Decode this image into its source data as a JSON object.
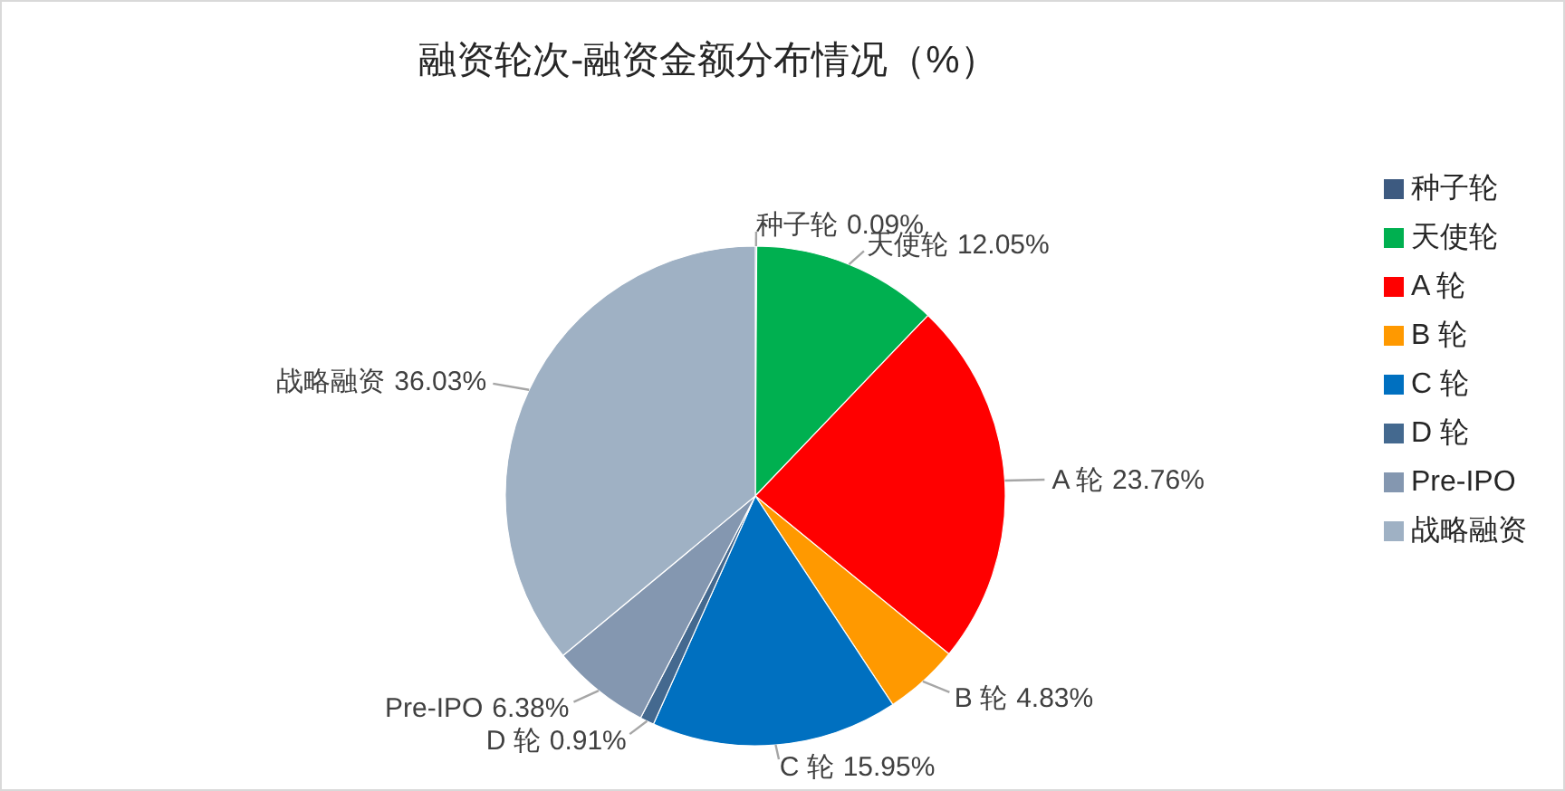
{
  "chart_data": {
    "type": "pie",
    "title": "融资轮次-融资金额分布情况（%）",
    "categories": [
      "种子轮",
      "天使轮",
      "A 轮",
      "B 轮",
      "C 轮",
      "D 轮",
      "Pre-IPO",
      "战略融资"
    ],
    "values": [
      0.09,
      12.05,
      23.76,
      4.83,
      15.95,
      0.91,
      6.38,
      36.03
    ],
    "value_labels": [
      "0.09%",
      "12.05%",
      "23.76%",
      "4.83%",
      "15.95%",
      "0.91%",
      "6.38%",
      "36.03%"
    ],
    "colors": [
      "#3d5a80",
      "#00b050",
      "#ff0000",
      "#ff9900",
      "#0070c0",
      "#44698f",
      "#8497b0",
      "#9fb1c4"
    ],
    "legend": "right"
  }
}
